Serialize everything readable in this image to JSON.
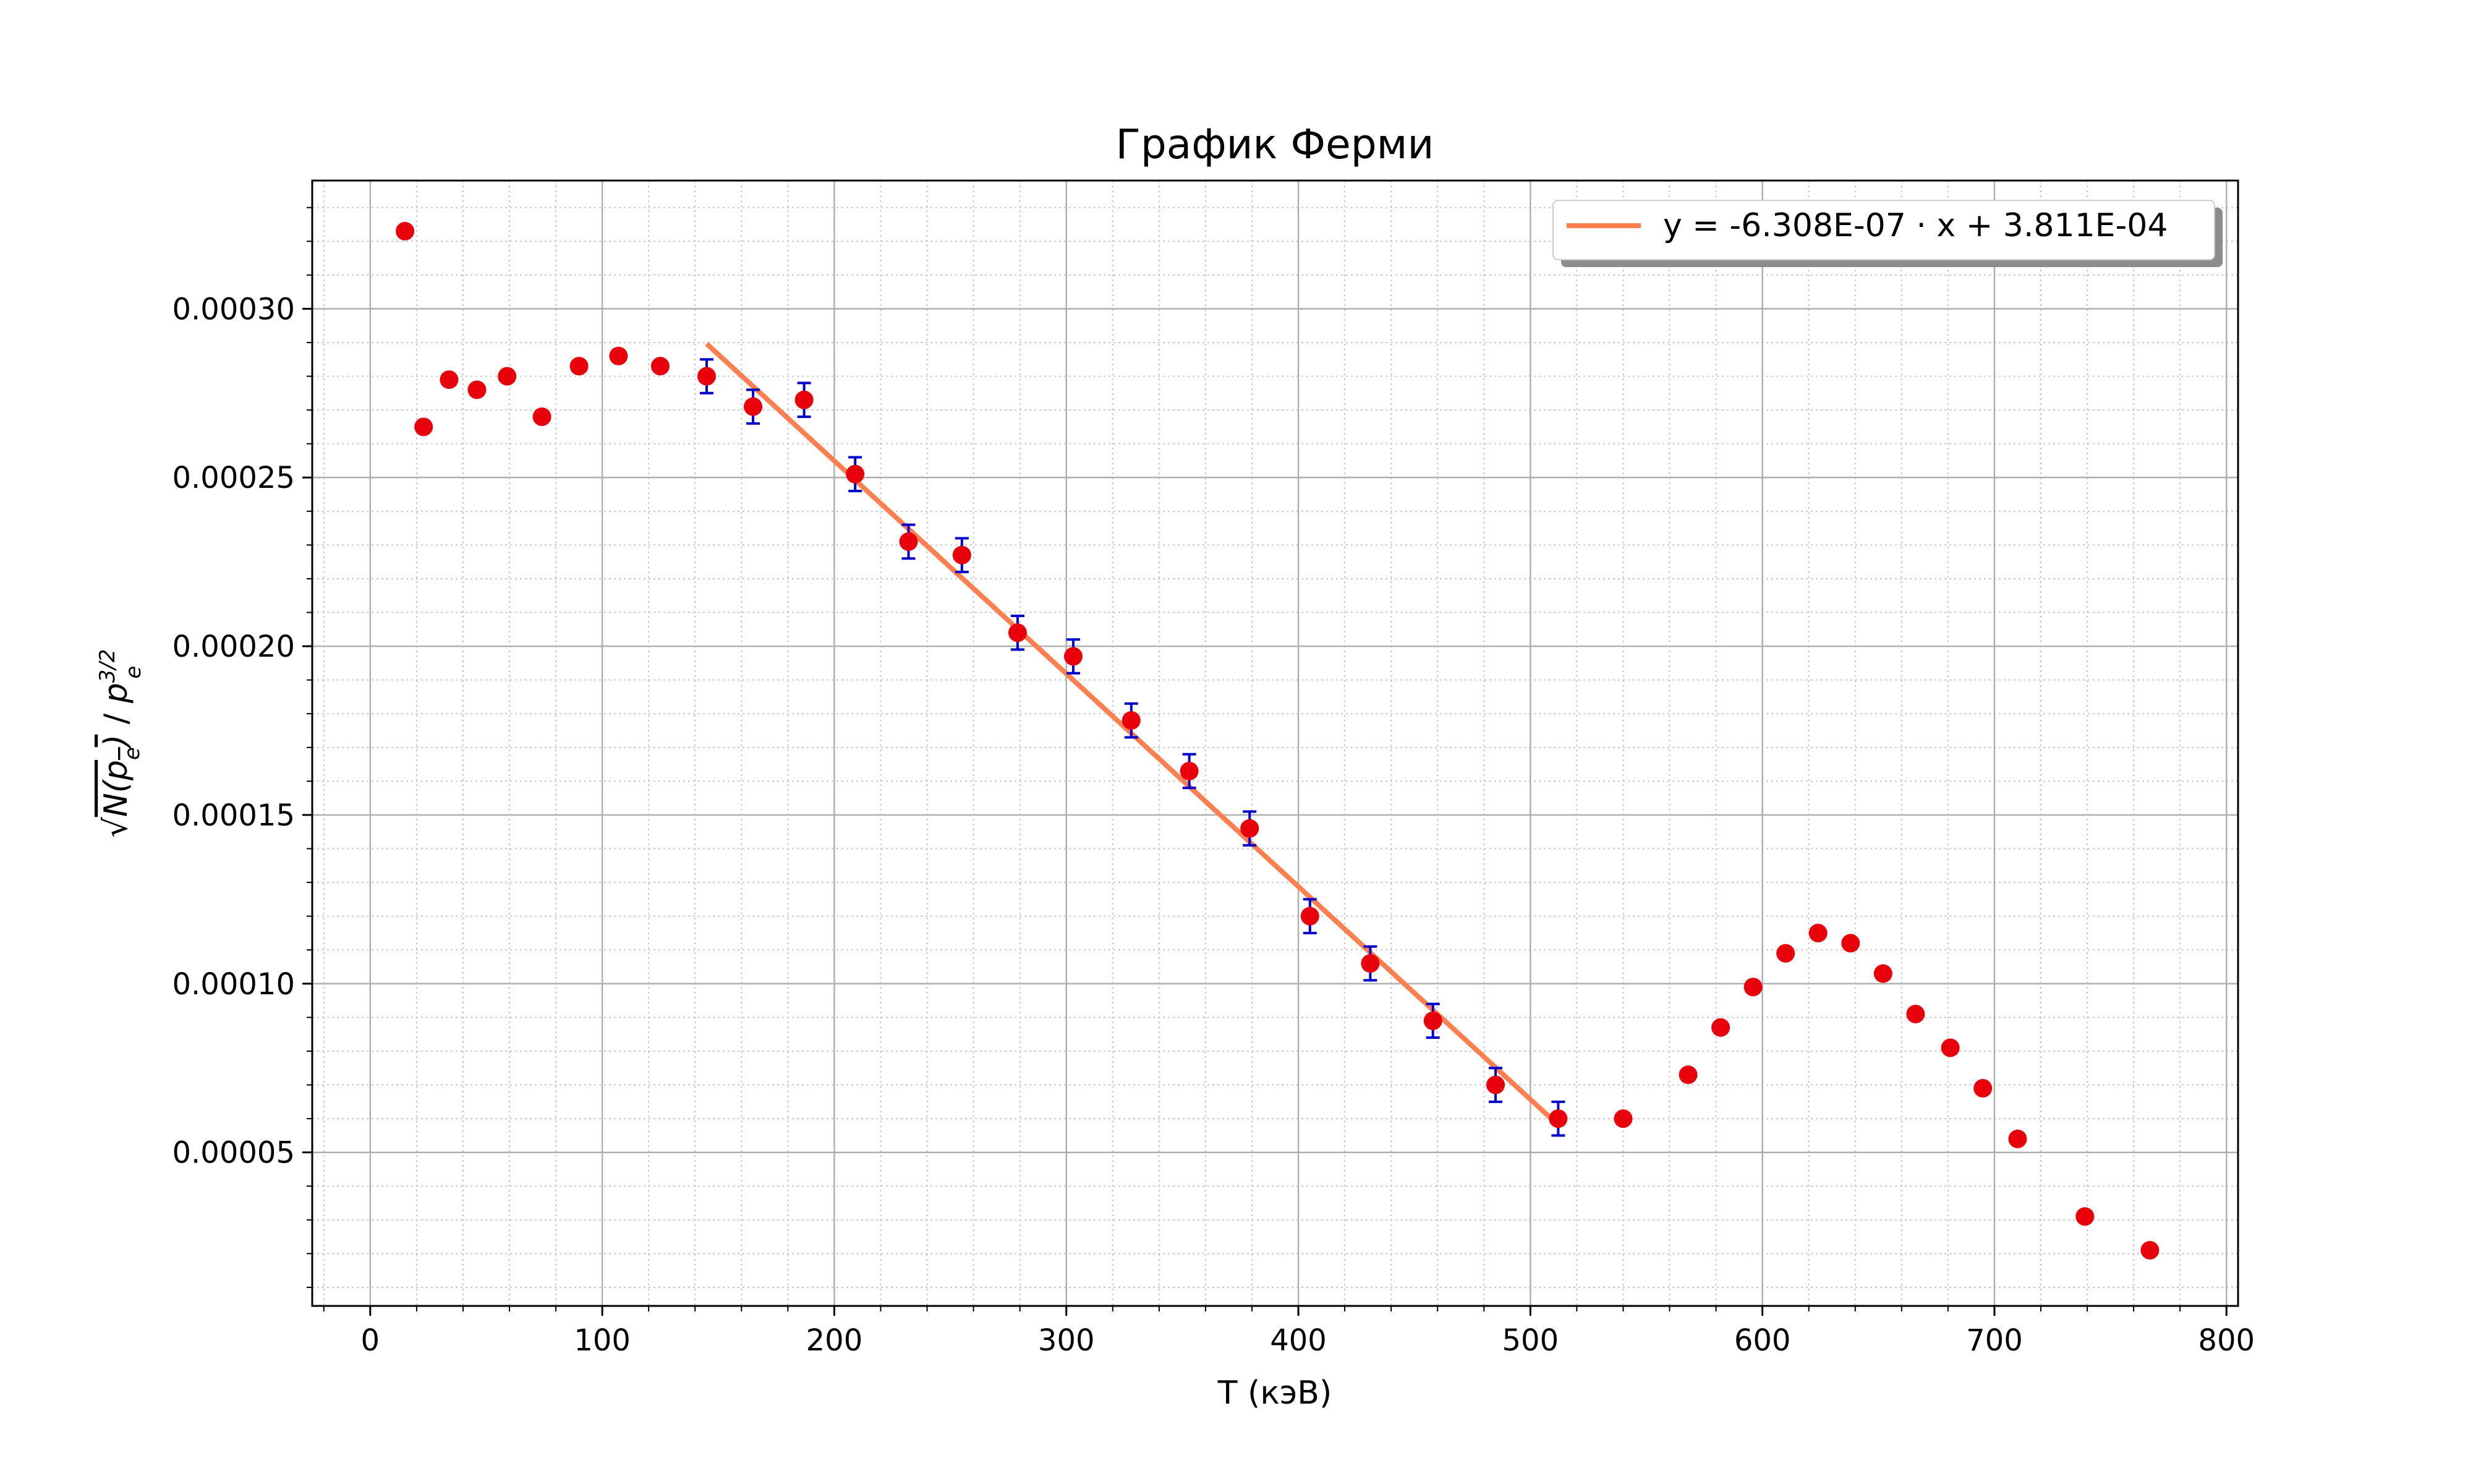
{
  "chart_data": {
    "type": "scatter",
    "title": "График Ферми",
    "xlabel": "T (кэВ)",
    "ylabel": "√N(p_e) / p_e^{3/2}",
    "xlim": [
      -25,
      805
    ],
    "ylim": [
      4.5e-06,
      0.000338
    ],
    "x_ticks": [
      0,
      100,
      200,
      300,
      400,
      500,
      600,
      700,
      800
    ],
    "x_tick_labels": [
      "0",
      "100",
      "200",
      "300",
      "400",
      "500",
      "600",
      "700",
      "800"
    ],
    "y_ticks": [
      5e-05,
      0.0001,
      0.00015,
      0.0002,
      0.00025,
      0.0003
    ],
    "y_tick_labels": [
      "0.00005",
      "0.00010",
      "0.00015",
      "0.00020",
      "0.00025",
      "0.00030"
    ],
    "grid": true,
    "minor_grid": true,
    "legend_position": "top-right",
    "colors": {
      "points": "#e8000b",
      "errorbars": "#0000cc",
      "fit": "#ff7f50"
    },
    "series": [
      {
        "kind": "points",
        "x": [
          15,
          23,
          34,
          46,
          59,
          74,
          90,
          107,
          125,
          145,
          165,
          187,
          209,
          232,
          255,
          279,
          303,
          328,
          353,
          379,
          405,
          431,
          458,
          485,
          512,
          540,
          568,
          582,
          596,
          610,
          624,
          638,
          652,
          666,
          681,
          695,
          710,
          739,
          767
        ],
        "y": [
          0.000323,
          0.000265,
          0.000279,
          0.000276,
          0.00028,
          0.000268,
          0.000283,
          0.000286,
          0.000283,
          0.00028,
          0.000271,
          0.000273,
          0.000251,
          0.000231,
          0.000227,
          0.000204,
          0.000197,
          0.000178,
          0.000163,
          0.000146,
          0.00012,
          0.000106,
          8.9e-05,
          7e-05,
          6e-05,
          6e-05,
          7.3e-05,
          8.7e-05,
          9.9e-05,
          0.000109,
          0.000115,
          0.000112,
          0.000103,
          9.1e-05,
          8.1e-05,
          6.9e-05,
          5.4e-05,
          3.1e-05,
          2.1e-05
        ]
      },
      {
        "kind": "errorbars",
        "x": [
          145,
          165,
          187,
          209,
          232,
          255,
          279,
          303,
          328,
          353,
          379,
          405,
          431,
          458,
          485,
          512
        ],
        "y": [
          0.00028,
          0.000271,
          0.000273,
          0.000251,
          0.000231,
          0.000227,
          0.000204,
          0.000197,
          0.000178,
          0.000163,
          0.000146,
          0.00012,
          0.000106,
          8.9e-05,
          7e-05,
          6e-05
        ],
        "err": 5e-06
      },
      {
        "kind": "fit",
        "name": "y = -6.308E-07 · x + 3.811E-04",
        "slope": -6.308e-07,
        "intercept": 0.0003811,
        "x_range": [
          145,
          513
        ]
      }
    ]
  }
}
